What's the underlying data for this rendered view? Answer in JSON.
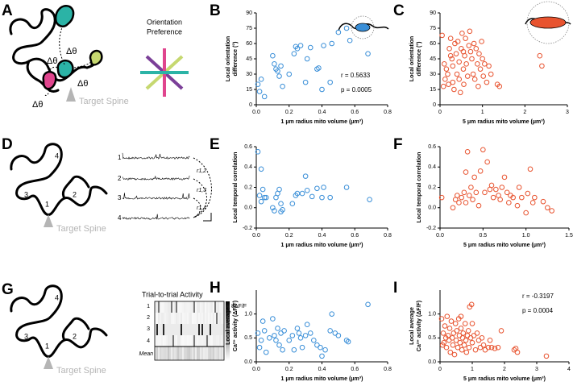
{
  "chart_data": [
    {
      "type": "scatter",
      "panel": "B",
      "xlabel": "1 μm radius mito volume (μm³)",
      "ylabel": [
        "Local orientation",
        "difference (°)"
      ],
      "color": "#3a8fd8",
      "xlim": [
        0,
        0.8
      ],
      "xticks": [
        {
          "value": 0,
          "label": "0.0"
        },
        0.2,
        0.4,
        0.6,
        0.8
      ],
      "ylim": [
        0,
        90
      ],
      "yticks": [
        0,
        15,
        30,
        45,
        60,
        75,
        90
      ],
      "annotations": [
        "r = 0.5633",
        "p = 0.0005"
      ],
      "x": [
        0.01,
        0.02,
        0.03,
        0.05,
        0.1,
        0.11,
        0.12,
        0.13,
        0.14,
        0.15,
        0.16,
        0.2,
        0.23,
        0.24,
        0.25,
        0.27,
        0.3,
        0.31,
        0.33,
        0.37,
        0.38,
        0.4,
        0.41,
        0.45,
        0.46,
        0.5,
        0.55,
        0.57,
        0.68
      ],
      "values": [
        20,
        13,
        25,
        8,
        48,
        40,
        35,
        33,
        28,
        38,
        18,
        30,
        50,
        57,
        55,
        58,
        22,
        45,
        56,
        35,
        36,
        15,
        58,
        22,
        60,
        71,
        75,
        63,
        50
      ]
    },
    {
      "type": "scatter",
      "panel": "C",
      "xlabel": "5 μm radius mito volume (μm³)",
      "ylabel": [
        "Local orientation",
        "difference (°)"
      ],
      "color": "#e8532f",
      "xlim": [
        0,
        3
      ],
      "xticks": [
        0,
        1,
        2,
        3
      ],
      "ylim": [
        0,
        90
      ],
      "yticks": [
        0,
        15,
        30,
        45,
        60,
        75,
        90
      ],
      "x": [
        0.05,
        0.1,
        0.15,
        0.12,
        0.18,
        0.2,
        0.22,
        0.25,
        0.28,
        0.3,
        0.3,
        0.33,
        0.35,
        0.38,
        0.4,
        0.42,
        0.45,
        0.45,
        0.48,
        0.5,
        0.52,
        0.55,
        0.56,
        0.58,
        0.6,
        0.62,
        0.65,
        0.68,
        0.7,
        0.72,
        0.75,
        0.78,
        0.8,
        0.82,
        0.85,
        0.88,
        0.9,
        0.92,
        0.95,
        0.98,
        1.0,
        1.02,
        1.05,
        1.1,
        1.15,
        1.2,
        1.35,
        1.4,
        2.35,
        2.4,
        0.08,
        0.25,
        0.55
      ],
      "values": [
        68,
        40,
        35,
        25,
        30,
        20,
        55,
        48,
        45,
        38,
        22,
        15,
        60,
        50,
        30,
        62,
        42,
        25,
        12,
        55,
        70,
        35,
        20,
        48,
        65,
        40,
        28,
        58,
        72,
        52,
        45,
        30,
        60,
        25,
        55,
        40,
        18,
        50,
        35,
        62,
        45,
        28,
        40,
        22,
        38,
        30,
        20,
        18,
        48,
        38,
        18,
        65,
        52
      ]
    },
    {
      "type": "scatter",
      "panel": "E",
      "xlabel": "1 μm radius mito volume (μm³)",
      "ylabel": [
        "Local temporal correlation"
      ],
      "color": "#3a8fd8",
      "xlim": [
        0,
        0.8
      ],
      "xticks": [
        {
          "value": 0,
          "label": "0.0"
        },
        0.2,
        0.4,
        0.6,
        0.8
      ],
      "ylim": [
        -0.2,
        0.6
      ],
      "yticks": [
        -0.2,
        {
          "value": 0,
          "label": "0.0"
        },
        0.2,
        0.4,
        0.6
      ],
      "x": [
        0.01,
        0.03,
        0.02,
        0.03,
        0.05,
        0.06,
        0.04,
        0.1,
        0.11,
        0.12,
        0.13,
        0.14,
        0.15,
        0.16,
        0.15,
        0.22,
        0.24,
        0.25,
        0.28,
        0.3,
        0.31,
        0.34,
        0.37,
        0.4,
        0.41,
        0.45,
        0.55,
        0.69
      ],
      "values": [
        0.55,
        0.38,
        0.12,
        0.06,
        0.1,
        0.1,
        0.18,
        0.0,
        -0.03,
        0.1,
        0.14,
        0.18,
        0.04,
        -0.02,
        -0.04,
        0.04,
        0.12,
        0.14,
        0.14,
        0.31,
        0.17,
        0.11,
        0.19,
        0.1,
        0.2,
        0.1,
        0.2,
        0.08
      ]
    },
    {
      "type": "scatter",
      "panel": "F",
      "xlabel": "5 μm radius mito volume (μm³)",
      "ylabel": [
        "Local temporal correlation"
      ],
      "color": "#e8532f",
      "xlim": [
        0,
        1.5
      ],
      "xticks": [
        {
          "value": 0,
          "label": "0.0"
        },
        0.5,
        {
          "value": 1,
          "label": "1.0"
        },
        1.5
      ],
      "ylim": [
        -0.2,
        0.6
      ],
      "yticks": [
        -0.2,
        {
          "value": 0,
          "label": "0.0"
        },
        0.2,
        0.4,
        0.6
      ],
      "x": [
        0.02,
        0.15,
        0.18,
        0.2,
        0.22,
        0.25,
        0.28,
        0.3,
        0.3,
        0.32,
        0.34,
        0.36,
        0.38,
        0.4,
        0.42,
        0.45,
        0.47,
        0.5,
        0.52,
        0.55,
        0.58,
        0.6,
        0.62,
        0.65,
        0.68,
        0.7,
        0.72,
        0.75,
        0.78,
        0.8,
        0.82,
        0.85,
        0.9,
        0.92,
        0.95,
        1.0,
        1.02,
        1.05,
        1.08,
        1.1,
        1.2,
        1.25,
        1.3
      ],
      "values": [
        0.1,
        0.0,
        0.08,
        0.12,
        0.05,
        0.1,
        0.15,
        0.35,
        0.05,
        0.55,
        0.12,
        0.2,
        0.08,
        0.3,
        0.15,
        0.02,
        0.36,
        0.57,
        0.15,
        0.45,
        0.18,
        0.22,
        0.1,
        0.18,
        0.12,
        0.08,
        0.2,
        0.3,
        0.15,
        0.05,
        0.12,
        0.1,
        0.02,
        0.2,
        0.1,
        -0.05,
        0.14,
        0.38,
        0.05,
        0.1,
        0.06,
        0.0,
        -0.03
      ]
    },
    {
      "type": "scatter",
      "panel": "H",
      "xlabel": "1 μm radius mito volume (μm³)",
      "ylabel": [
        "Local average",
        "Ca²⁺ activity (ΔF/F)"
      ],
      "color": "#3a8fd8",
      "xlim": [
        0,
        0.8
      ],
      "xticks": [
        {
          "value": 0,
          "label": "0.0"
        },
        0.2,
        0.4,
        0.6,
        0.8
      ],
      "ylim": [
        0,
        1.5
      ],
      "yticks": [
        {
          "value": 0,
          "label": "0.0"
        },
        0.5,
        {
          "value": 1,
          "label": "1.0"
        }
      ],
      "x": [
        0.01,
        0.02,
        0.03,
        0.04,
        0.05,
        0.06,
        0.08,
        0.1,
        0.11,
        0.12,
        0.13,
        0.14,
        0.15,
        0.16,
        0.17,
        0.2,
        0.22,
        0.23,
        0.25,
        0.26,
        0.27,
        0.28,
        0.3,
        0.31,
        0.33,
        0.35,
        0.37,
        0.39,
        0.4,
        0.42,
        0.45,
        0.46,
        0.48,
        0.5,
        0.55,
        0.56,
        0.68
      ],
      "values": [
        0.6,
        0.3,
        0.45,
        0.85,
        0.65,
        0.2,
        0.5,
        0.9,
        0.55,
        0.45,
        0.7,
        0.35,
        0.6,
        0.25,
        0.65,
        0.45,
        0.55,
        0.25,
        0.7,
        0.6,
        0.5,
        0.3,
        0.55,
        0.78,
        0.6,
        0.45,
        0.35,
        0.3,
        0.12,
        0.25,
        0.65,
        1.0,
        0.6,
        0.55,
        0.45,
        0.42,
        1.2
      ]
    },
    {
      "type": "scatter",
      "panel": "I",
      "xlabel": "5 μm radius mito volume (μm³)",
      "ylabel": [
        "Local average",
        "Ca²⁺ activity (ΔF/F)"
      ],
      "color": "#e8532f",
      "xlim": [
        0,
        4
      ],
      "xticks": [
        0,
        1,
        2,
        3,
        4
      ],
      "ylim": [
        0,
        1.5
      ],
      "yticks": [
        {
          "value": 0,
          "label": "0.0"
        },
        0.5,
        {
          "value": 1,
          "label": "1.0"
        }
      ],
      "annotations": [
        "r = -0.3197",
        "p = 0.0004"
      ],
      "x": [
        0.05,
        0.1,
        0.12,
        0.15,
        0.18,
        0.2,
        0.22,
        0.25,
        0.28,
        0.3,
        0.32,
        0.35,
        0.38,
        0.4,
        0.42,
        0.45,
        0.48,
        0.5,
        0.52,
        0.55,
        0.58,
        0.6,
        0.62,
        0.65,
        0.68,
        0.7,
        0.72,
        0.75,
        0.78,
        0.8,
        0.82,
        0.85,
        0.88,
        0.9,
        0.92,
        0.95,
        0.98,
        1.0,
        1.05,
        1.1,
        1.15,
        1.2,
        1.25,
        1.3,
        1.35,
        1.4,
        1.5,
        1.55,
        1.6,
        1.7,
        1.8,
        1.9,
        2.3,
        2.4,
        2.35,
        3.3,
        0.08,
        0.65,
        1.0
      ],
      "values": [
        0.9,
        0.6,
        0.4,
        0.75,
        0.5,
        0.3,
        0.95,
        0.55,
        0.45,
        0.7,
        0.2,
        0.85,
        0.5,
        0.35,
        0.6,
        0.15,
        0.8,
        0.45,
        0.65,
        0.3,
        0.9,
        0.55,
        0.4,
        0.7,
        0.25,
        0.5,
        0.6,
        0.35,
        0.8,
        0.45,
        0.2,
        0.55,
        0.65,
        0.3,
        1.15,
        0.5,
        1.2,
        0.4,
        0.55,
        0.25,
        0.6,
        0.45,
        0.3,
        0.5,
        0.35,
        0.25,
        0.3,
        0.45,
        0.3,
        0.28,
        0.3,
        0.65,
        0.25,
        0.2,
        0.28,
        0.12,
        0.35,
        0.95,
        0.8
      ]
    }
  ],
  "diagrams": {
    "A": {
      "panel": "A",
      "deltas": [
        "Δθ",
        "Δθ",
        "Δθ",
        "Δθ"
      ],
      "target": "Target Spine",
      "orientation": [
        "Orientation",
        "Preference"
      ]
    },
    "D": {
      "panel": "D",
      "spines": [
        "1",
        "2",
        "3",
        "4"
      ],
      "target": "Target Spine",
      "traces": [
        "1",
        "2",
        "3",
        "4"
      ],
      "correlations": [
        "r1,2",
        "r1,3",
        "r1,4"
      ]
    },
    "G": {
      "panel": "G",
      "spines": [
        "1",
        "2",
        "3",
        "4"
      ],
      "target": "Target Spine",
      "heatmap_title": "Trial-to-trial Activity",
      "rows": [
        "1",
        "2",
        "3",
        "4",
        "Mean"
      ],
      "scale": "8ΔF/F"
    }
  }
}
